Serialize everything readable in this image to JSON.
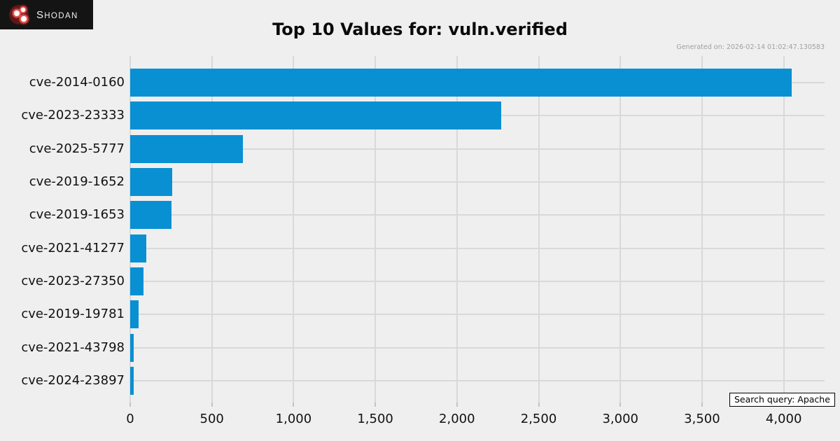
{
  "logo": {
    "brand_initial": "S",
    "brand_rest": "HODAN"
  },
  "header": {
    "title": "Top 10 Values for: vuln.verified",
    "generated": "Generated on: 2026-02-14 01:02:47.130583"
  },
  "footer": {
    "search_query": "Search query: Apache"
  },
  "colors": {
    "bar": "#0990d3",
    "background": "#efefef",
    "grid": "#d9d9d9",
    "logo_bg": "#141414",
    "logo_red": "#e2504c",
    "logo_dark_red": "#5c1717"
  },
  "chart_data": {
    "type": "bar",
    "orientation": "horizontal",
    "title": "Top 10 Values for: vuln.verified",
    "categories": [
      "cve-2014-0160",
      "cve-2023-23333",
      "cve-2025-5777",
      "cve-2019-1652",
      "cve-2019-1653",
      "cve-2021-41277",
      "cve-2023-27350",
      "cve-2019-19781",
      "cve-2021-43798",
      "cve-2024-23897"
    ],
    "values": [
      4050,
      2270,
      690,
      255,
      253,
      100,
      80,
      51,
      21,
      20
    ],
    "xlabel": "",
    "ylabel": "",
    "xlim": [
      0,
      4250
    ],
    "xticks": [
      0,
      500,
      1000,
      1500,
      2000,
      2500,
      3000,
      3500,
      4000
    ],
    "xtick_labels": [
      "0",
      "500",
      "1,000",
      "1,500",
      "2,000",
      "2,500",
      "3,000",
      "3,500",
      "4,000"
    ],
    "grid": true,
    "legend": false
  }
}
